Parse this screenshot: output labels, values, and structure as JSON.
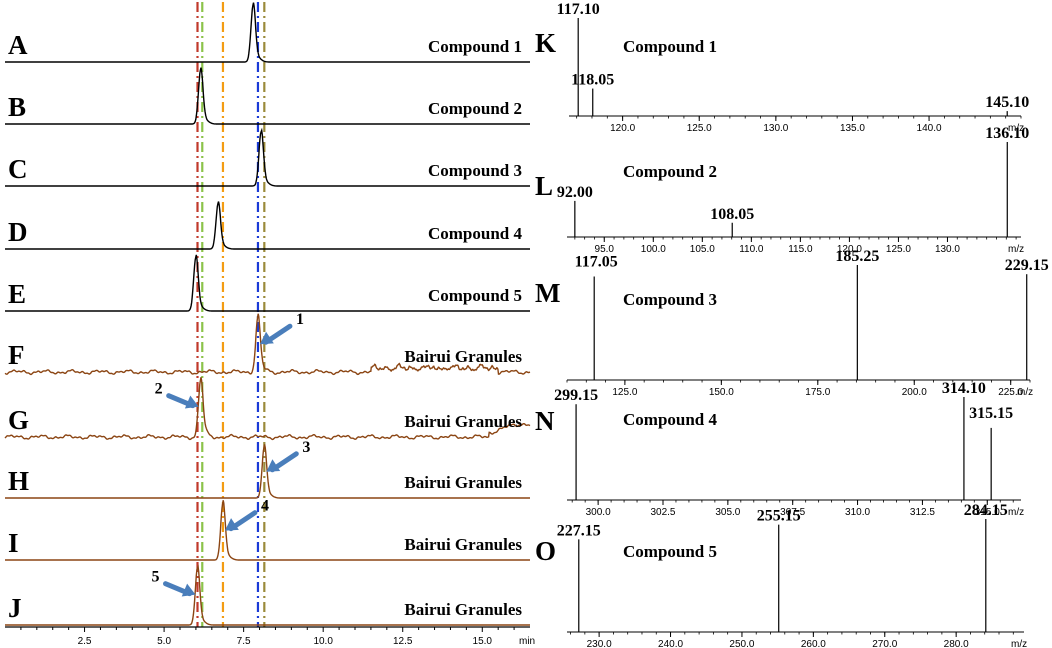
{
  "colors": {
    "standard_trace": "#000000",
    "sample_trace": "#8b4513",
    "arrow": "#4a7ebb",
    "guide_red": "#c0392b",
    "guide_green": "#8bc34a",
    "guide_orange": "#f39c12",
    "guide_blue": "#1a3ad6",
    "guide_olive": "#9a8a3a"
  },
  "chromatograms": {
    "x_axis": {
      "min": 0,
      "max": 16.5,
      "ticks": [
        "2.5",
        "5.0",
        "7.5",
        "10.0",
        "12.5",
        "15.0"
      ],
      "tick_values": [
        2.5,
        5.0,
        7.5,
        10.0,
        12.5,
        15.0
      ],
      "unit": "min"
    },
    "guide_lines": [
      {
        "time": 6.05,
        "color": "guide_red"
      },
      {
        "time": 6.2,
        "color": "guide_green"
      },
      {
        "time": 6.85,
        "color": "guide_orange"
      },
      {
        "time": 7.95,
        "color": "guide_blue"
      },
      {
        "time": 8.15,
        "color": "guide_olive"
      }
    ],
    "traces": [
      {
        "letter": "A",
        "title": "Compound 1",
        "kind": "standard",
        "peak_time": 7.8,
        "peak_height": 1.0,
        "noise": false,
        "arrow": null
      },
      {
        "letter": "B",
        "title": "Compound 2",
        "kind": "standard",
        "peak_time": 6.15,
        "peak_height": 0.95,
        "noise": false,
        "arrow": null
      },
      {
        "letter": "C",
        "title": "Compound 3",
        "kind": "standard",
        "peak_time": 8.05,
        "peak_height": 0.95,
        "noise": false,
        "arrow": null
      },
      {
        "letter": "D",
        "title": "Compound 4",
        "kind": "standard",
        "peak_time": 6.7,
        "peak_height": 0.8,
        "noise": false,
        "arrow": null
      },
      {
        "letter": "E",
        "title": "Compound 5",
        "kind": "standard",
        "peak_time": 6.0,
        "peak_height": 0.95,
        "noise": false,
        "arrow": null
      },
      {
        "letter": "F",
        "title": "Bairui Granules",
        "kind": "sample",
        "peak_time": 7.95,
        "peak_height": 0.95,
        "noise": true,
        "arrow": {
          "label": "1",
          "side": "right"
        }
      },
      {
        "letter": "G",
        "title": "Bairui Granules",
        "kind": "sample",
        "peak_time": 6.15,
        "peak_height": 1.0,
        "noise": true,
        "arrow": {
          "label": "2",
          "side": "left"
        }
      },
      {
        "letter": "H",
        "title": "Bairui Granules",
        "kind": "sample",
        "peak_time": 8.15,
        "peak_height": 0.9,
        "noise": false,
        "arrow": {
          "label": "3",
          "side": "right"
        }
      },
      {
        "letter": "I",
        "title": "Bairui Granules",
        "kind": "sample",
        "peak_time": 6.85,
        "peak_height": 1.0,
        "noise": false,
        "arrow": {
          "label": "4",
          "side": "right"
        }
      },
      {
        "letter": "J",
        "title": "Bairui Granules",
        "kind": "sample",
        "peak_time": 6.05,
        "peak_height": 1.0,
        "noise": false,
        "arrow": {
          "label": "5",
          "side": "left"
        }
      }
    ]
  },
  "chart_data": [
    {
      "type": "line",
      "title": "",
      "xlabel": "min",
      "xlim": [
        0,
        16.5
      ],
      "series": [
        {
          "name": "Compound 1",
          "peaks_x": [
            7.8
          ]
        },
        {
          "name": "Compound 2",
          "peaks_x": [
            6.15
          ]
        },
        {
          "name": "Compound 3",
          "peaks_x": [
            8.05
          ]
        },
        {
          "name": "Compound 4",
          "peaks_x": [
            6.7
          ]
        },
        {
          "name": "Compound 5",
          "peaks_x": [
            6.0
          ]
        },
        {
          "name": "Bairui Granules",
          "peaks_x": [
            7.95,
            6.15,
            8.15,
            6.85,
            6.05
          ]
        }
      ]
    },
    {
      "type": "bar",
      "title": "Compound 1",
      "letter": "K",
      "xlabel": "m/z",
      "xlim": [
        116.5,
        146
      ],
      "ticks": [
        120.0,
        125.0,
        130.0,
        135.0,
        140.0
      ],
      "peaks": [
        {
          "mz": 117.1,
          "label": "117.10",
          "intensity": 1.0
        },
        {
          "mz": 118.05,
          "label": "118.05",
          "intensity": 0.28
        },
        {
          "mz": 145.1,
          "label": "145.10",
          "intensity": 0.05
        }
      ]
    },
    {
      "type": "bar",
      "title": "Compound 2",
      "letter": "L",
      "xlabel": "m/z",
      "xlim": [
        91.2,
        137.5
      ],
      "ticks": [
        95.0,
        100.0,
        105.0,
        110.0,
        115.0,
        120.0,
        125.0,
        130.0
      ],
      "peaks": [
        {
          "mz": 92.0,
          "label": "92.00",
          "intensity": 0.38
        },
        {
          "mz": 108.05,
          "label": "108.05",
          "intensity": 0.15
        },
        {
          "mz": 136.1,
          "label": "136.10",
          "intensity": 1.0
        }
      ]
    },
    {
      "type": "bar",
      "title": "Compound 3",
      "letter": "M",
      "xlabel": "m/z",
      "xlim": [
        110,
        230
      ],
      "ticks": [
        125.0,
        150.0,
        175.0,
        200.0,
        225.0
      ],
      "peaks": [
        {
          "mz": 117.05,
          "label": "117.05",
          "intensity": 0.9
        },
        {
          "mz": 185.25,
          "label": "185.25",
          "intensity": 1.0
        },
        {
          "mz": 229.15,
          "label": "229.15",
          "intensity": 0.92
        }
      ]
    },
    {
      "type": "bar",
      "title": "Compound 4",
      "letter": "N",
      "xlabel": "m/z",
      "xlim": [
        298.8,
        316.3
      ],
      "ticks": [
        300.0,
        302.5,
        305.0,
        307.5,
        310.0,
        312.5,
        315.0
      ],
      "peaks": [
        {
          "mz": 299.15,
          "label": "299.15",
          "intensity": 0.93
        },
        {
          "mz": 314.1,
          "label": "314.10",
          "intensity": 1.0
        },
        {
          "mz": 315.15,
          "label": "315.15",
          "intensity": 0.7
        }
      ]
    },
    {
      "type": "bar",
      "title": "Compound 5",
      "letter": "O",
      "xlabel": "m/z",
      "xlim": [
        225.5,
        289.5
      ],
      "ticks": [
        230.0,
        240.0,
        250.0,
        260.0,
        270.0,
        280.0
      ],
      "peaks": [
        {
          "mz": 227.15,
          "label": "227.15",
          "intensity": 0.82
        },
        {
          "mz": 255.15,
          "label": "255.15",
          "intensity": 0.95
        },
        {
          "mz": 284.15,
          "label": "284.15",
          "intensity": 1.0
        }
      ]
    }
  ]
}
